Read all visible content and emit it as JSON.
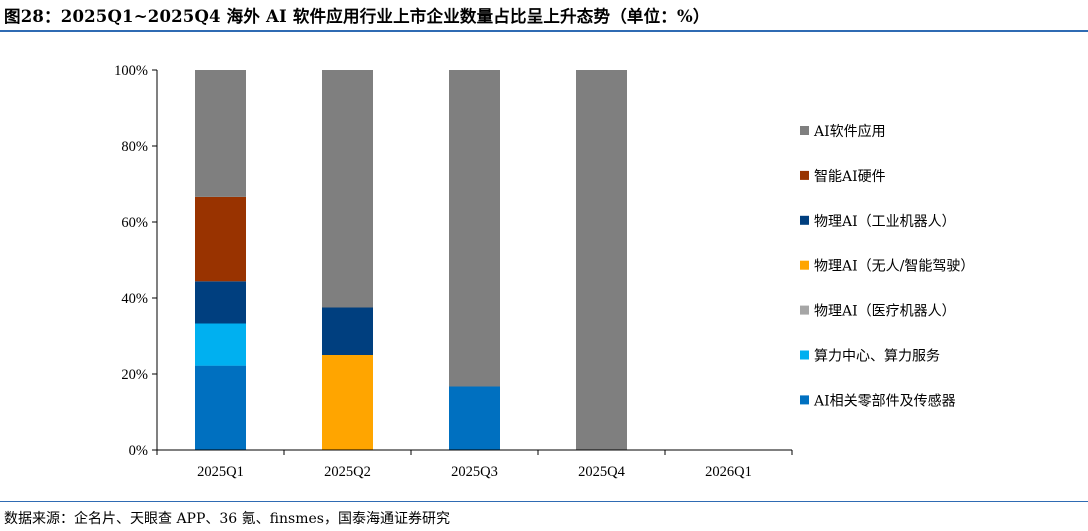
{
  "title": "图28：2025Q1~2025Q4 海外 AI 软件应用行业上市企业数量占比呈上升态势（单位：%）",
  "source": "数据来源：企名片、天眼查 APP、36 氪、finsmes，国泰海通证券研究",
  "chart_data": {
    "type": "bar",
    "stacked": true,
    "categories": [
      "2025Q1",
      "2025Q2",
      "2025Q3",
      "2025Q4",
      "2026Q1"
    ],
    "ylim": [
      0,
      100
    ],
    "yticks": [
      "0%",
      "20%",
      "40%",
      "60%",
      "80%",
      "100%"
    ],
    "ytick_values": [
      0,
      20,
      40,
      60,
      80,
      100
    ],
    "grid": false,
    "legend_position": "right",
    "series": [
      {
        "name": "AI相关零部件及传感器",
        "color": "#0070c0",
        "values": [
          22.2,
          0,
          16.7,
          0,
          0
        ]
      },
      {
        "name": "算力中心、算力服务",
        "color": "#00b0f0",
        "values": [
          11.1,
          0,
          0,
          0,
          0
        ]
      },
      {
        "name": "物理AI（医疗机器人）",
        "color": "#a6a6a6",
        "values": [
          0,
          0,
          0,
          0,
          0
        ]
      },
      {
        "name": "物理AI（无人/智能驾驶）",
        "color": "#ffa500",
        "values": [
          0,
          25.0,
          0,
          0,
          0
        ]
      },
      {
        "name": "物理AI（工业机器人）",
        "color": "#003f7f",
        "values": [
          11.1,
          12.5,
          0,
          0,
          0
        ]
      },
      {
        "name": "智能AI硬件",
        "color": "#993300",
        "values": [
          22.2,
          0,
          0,
          0,
          0
        ]
      },
      {
        "name": "AI软件应用",
        "color": "#7f7f7f",
        "values": [
          33.4,
          62.5,
          83.3,
          100,
          0
        ]
      }
    ]
  }
}
